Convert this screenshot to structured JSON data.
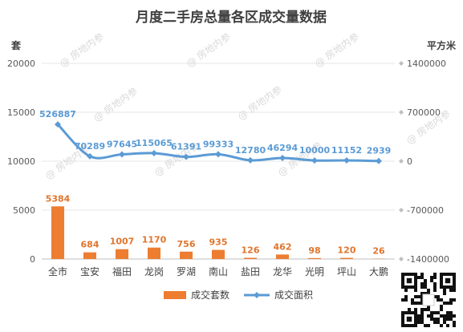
{
  "chart_data": {
    "type": "bar",
    "title": "月度二手房总量各区成交量数据",
    "y_left_unit": "套",
    "y_right_unit": "平方米",
    "y_left_range": [
      0,
      20000
    ],
    "y_left_ticks": [
      "0",
      "5000",
      "10000",
      "15000",
      "20000"
    ],
    "y_right_range": [
      -1400000,
      1400000
    ],
    "y_right_ticks": [
      "-1400000",
      "-700000",
      "0",
      "700000",
      "1400000"
    ],
    "categories": [
      "全市",
      "宝安",
      "福田",
      "龙岗",
      "罗湖",
      "南山",
      "盐田",
      "龙华",
      "光明",
      "坪山",
      "大鹏"
    ],
    "series": [
      {
        "name": "成交套数",
        "type": "bar",
        "axis": "left",
        "color": "#ed7d31",
        "values": [
          5384,
          684,
          1007,
          1170,
          756,
          935,
          126,
          462,
          98,
          120,
          26
        ]
      },
      {
        "name": "成交面积",
        "type": "line",
        "axis": "right",
        "color": "#5b9bd5",
        "values": [
          526887,
          70289,
          97645,
          115065,
          61391,
          99333,
          12780,
          46294,
          10000,
          11152,
          2939
        ]
      }
    ],
    "legend_position": "bottom",
    "grid": true
  },
  "watermark_text": "房地内参"
}
